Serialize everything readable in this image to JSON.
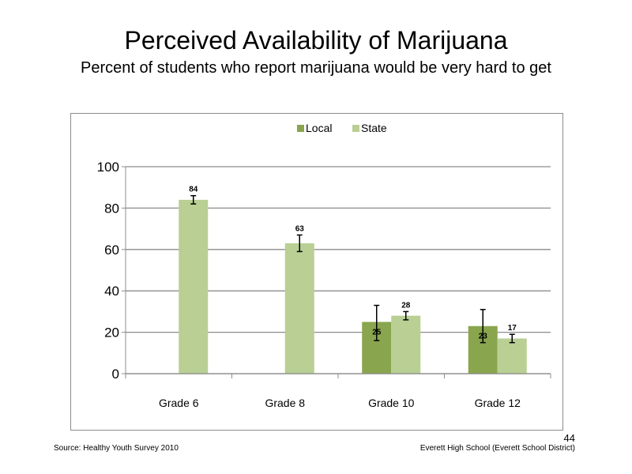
{
  "slide": {
    "title": "Perceived  Availability  of Marijuana",
    "subtitle": "Percent of students  who  report marijuana  would be very hard to get",
    "source": "Source: Healthy Youth Survey 2010",
    "school": "Everett High School (Everett School District)",
    "page_number": "44"
  },
  "chart_data": {
    "type": "bar",
    "title": "",
    "xlabel": "",
    "ylabel": "",
    "ylim": [
      0,
      100
    ],
    "yticks": [
      0,
      20,
      40,
      60,
      80,
      100
    ],
    "grid": true,
    "legend_position": "top",
    "categories": [
      "Grade 6",
      "Grade 8",
      "Grade 10",
      "Grade 12"
    ],
    "series": [
      {
        "name": "Local",
        "color": "#89a54e",
        "values": [
          null,
          null,
          25,
          23
        ],
        "labels": [
          "",
          "",
          "25",
          "23"
        ],
        "error_low": [
          null,
          null,
          16,
          15
        ],
        "error_high": [
          null,
          null,
          33,
          31
        ]
      },
      {
        "name": "State",
        "color": "#b9cf94",
        "values": [
          84,
          63,
          28,
          17
        ],
        "labels": [
          "84",
          "63",
          "28",
          "17"
        ],
        "error_low": [
          82,
          59,
          26,
          15
        ],
        "error_high": [
          86,
          67,
          30,
          19
        ]
      }
    ]
  }
}
